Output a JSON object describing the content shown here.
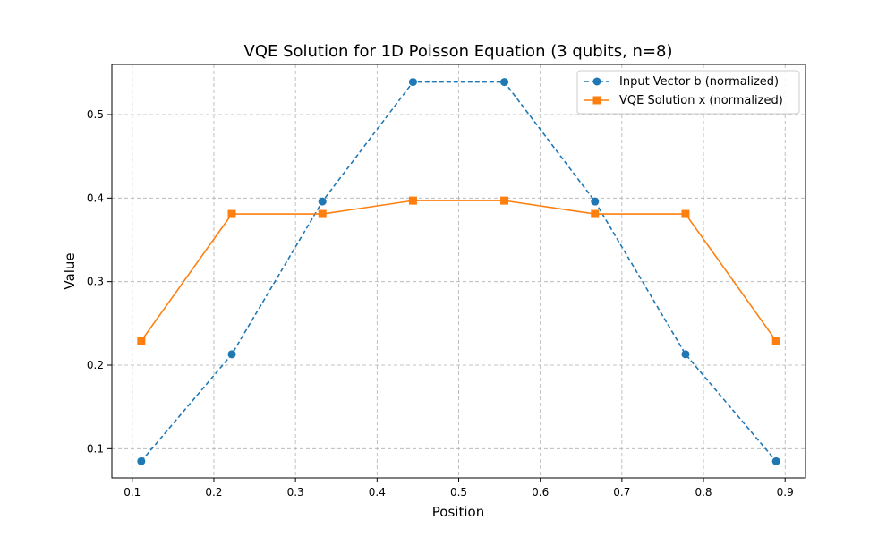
{
  "chart_data": {
    "type": "line",
    "title": "VQE Solution for 1D Poisson Equation (3 qubits, n=8)",
    "xlabel": "Position",
    "ylabel": "Value",
    "xlim": [
      0.075,
      0.925
    ],
    "ylim": [
      0.065,
      0.56
    ],
    "xticks": [
      "0.1",
      "0.2",
      "0.3",
      "0.4",
      "0.5",
      "0.6",
      "0.7",
      "0.8",
      "0.9"
    ],
    "yticks": [
      "0.1",
      "0.2",
      "0.3",
      "0.4",
      "0.5"
    ],
    "grid": true,
    "legend_position": "top-right",
    "x": [
      0.111,
      0.222,
      0.333,
      0.444,
      0.556,
      0.667,
      0.778,
      0.889
    ],
    "series": [
      {
        "name": "Input Vector b (normalized)",
        "values": [
          0.085,
          0.213,
          0.396,
          0.539,
          0.539,
          0.396,
          0.213,
          0.085
        ],
        "color": "#1f77b4",
        "line_style": "dashed",
        "marker": "circle"
      },
      {
        "name": "VQE Solution x (normalized)",
        "values": [
          0.229,
          0.381,
          0.381,
          0.397,
          0.397,
          0.381,
          0.381,
          0.229
        ],
        "color": "#ff7f0e",
        "line_style": "solid",
        "marker": "square"
      }
    ]
  }
}
